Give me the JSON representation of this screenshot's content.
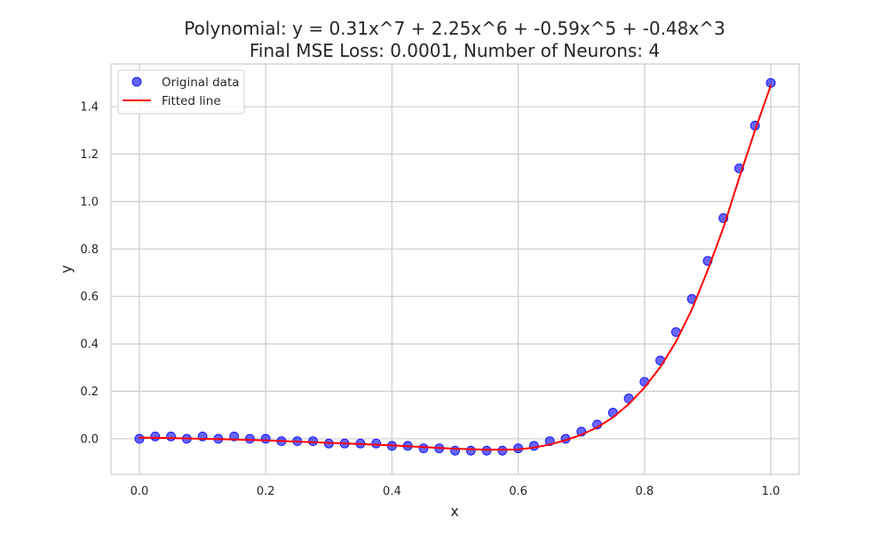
{
  "chart_data": {
    "type": "scatter",
    "title_line1": "Polynomial: y = 0.31x^7 + 2.25x^6 + -0.59x^5 + -0.48x^3",
    "title_line2": "Final MSE Loss: 0.0001, Number of Neurons: 4",
    "xlabel": "x",
    "ylabel": "y",
    "xlim": [
      -0.045,
      1.045
    ],
    "ylim": [
      -0.15,
      1.58
    ],
    "grid": true,
    "legend_position": "top-left",
    "x_ticks": [
      {
        "value": 0.0,
        "label": "0.0"
      },
      {
        "value": 0.2,
        "label": "0.2"
      },
      {
        "value": 0.4,
        "label": "0.4"
      },
      {
        "value": 0.6,
        "label": "0.6"
      },
      {
        "value": 0.8,
        "label": "0.8"
      },
      {
        "value": 1.0,
        "label": "1.0"
      }
    ],
    "y_ticks": [
      {
        "value": 0.0,
        "label": "0.0"
      },
      {
        "value": 0.2,
        "label": "0.2"
      },
      {
        "value": 0.4,
        "label": "0.4"
      },
      {
        "value": 0.6,
        "label": "0.6"
      },
      {
        "value": 0.8,
        "label": "0.8"
      },
      {
        "value": 1.0,
        "label": "1.0"
      },
      {
        "value": 1.2,
        "label": "1.2"
      },
      {
        "value": 1.4,
        "label": "1.4"
      }
    ],
    "series": [
      {
        "name": "Original data",
        "kind": "scatter",
        "color": "#0000ff",
        "x": [
          0.0,
          0.025,
          0.05,
          0.075,
          0.1,
          0.125,
          0.15,
          0.175,
          0.2,
          0.225,
          0.25,
          0.275,
          0.3,
          0.325,
          0.35,
          0.375,
          0.4,
          0.425,
          0.45,
          0.475,
          0.5,
          0.525,
          0.55,
          0.575,
          0.6,
          0.625,
          0.65,
          0.675,
          0.7,
          0.725,
          0.75,
          0.775,
          0.8,
          0.825,
          0.85,
          0.875,
          0.9,
          0.925,
          0.95,
          0.975,
          1.0
        ],
        "y": [
          0.0,
          0.01,
          0.01,
          0.0,
          0.01,
          0.0,
          0.01,
          0.0,
          0.0,
          -0.01,
          -0.01,
          -0.01,
          -0.02,
          -0.02,
          -0.02,
          -0.02,
          -0.03,
          -0.03,
          -0.04,
          -0.04,
          -0.05,
          -0.05,
          -0.05,
          -0.05,
          -0.04,
          -0.03,
          -0.01,
          0.0,
          0.03,
          0.06,
          0.11,
          0.17,
          0.24,
          0.33,
          0.45,
          0.59,
          0.75,
          0.93,
          1.14,
          1.32,
          1.5
        ]
      },
      {
        "name": "Fitted line",
        "kind": "line",
        "color": "#ff0000",
        "x": [
          0.0,
          0.05,
          0.1,
          0.15,
          0.2,
          0.25,
          0.3,
          0.35,
          0.4,
          0.45,
          0.5,
          0.55,
          0.6,
          0.625,
          0.65,
          0.675,
          0.7,
          0.725,
          0.75,
          0.775,
          0.8,
          0.825,
          0.85,
          0.875,
          0.9,
          0.925,
          0.95,
          0.975,
          1.0
        ],
        "y": [
          0.005,
          0.003,
          0.0,
          -0.003,
          -0.007,
          -0.012,
          -0.017,
          -0.022,
          -0.028,
          -0.035,
          -0.042,
          -0.046,
          -0.045,
          -0.037,
          -0.024,
          -0.006,
          0.017,
          0.048,
          0.09,
          0.146,
          0.216,
          0.302,
          0.41,
          0.545,
          0.71,
          0.89,
          1.1,
          1.3,
          1.49
        ]
      }
    ]
  }
}
